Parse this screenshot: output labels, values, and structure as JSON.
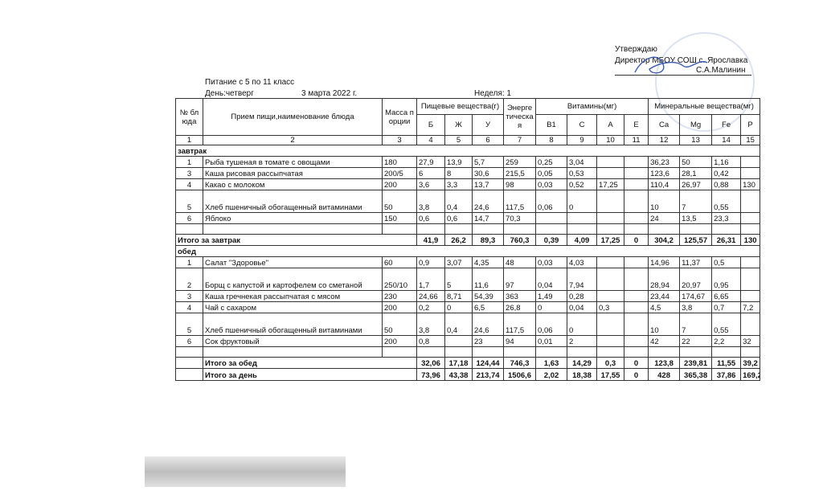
{
  "approval": {
    "label": "Утверждаю",
    "position": "Директор МБОУ СОШ с. Ярославка",
    "name": "С.А.Малинин"
  },
  "header": {
    "title": "Питание с 5 по 11 класс",
    "day": "День:четверг",
    "date": "3 марта 2022 г.",
    "week": "Неделя: 1"
  },
  "table": {
    "head": {
      "number": "№ блюда",
      "dish": "Прием пищи,наименование блюда",
      "mass": "Масса порции",
      "nutrients": {
        "title": "Пищевые вещества(г)",
        "columns": [
          "Б",
          "Ж",
          "У"
        ]
      },
      "energy": "Энергетическая",
      "vitamins": {
        "title": "Витамины(мг)",
        "columns": [
          "B1",
          "C",
          "A",
          "E"
        ]
      },
      "minerals": {
        "title": "Минеральные вещества(мг)",
        "columns": [
          "Ca",
          "Mg",
          "Fe",
          "P"
        ]
      }
    },
    "column_numbers": [
      "1",
      "2",
      "3",
      "4",
      "5",
      "6",
      "7",
      "8",
      "9",
      "10",
      "11",
      "12",
      "13",
      "14",
      "15"
    ],
    "sections": [
      {
        "title": "завтрак",
        "rows": [
          [
            "1",
            "Рыба тушеная в томате с овощами",
            "180",
            "27,9",
            "13,9",
            "5,7",
            "259",
            "0,25",
            "3,04",
            null,
            null,
            "36,23",
            "50",
            "1,16",
            null
          ],
          [
            "3",
            "Каша рисовая рассыпчатая",
            "200/5",
            "6",
            "8",
            "30,6",
            "215,5",
            "0,05",
            "0,53",
            null,
            null,
            "123,6",
            "28,1",
            "0,42",
            null
          ],
          [
            "4",
            "Какао с молоком",
            "200",
            "3,6",
            "3,3",
            "13,7",
            "98",
            "0,03",
            "0,52",
            "17,25",
            null,
            "110,4",
            "26,97",
            "0,88",
            "130"
          ],
          [
            "5",
            "Хлеб пшеничный обогащенный витаминами",
            "50",
            "3,8",
            "0,4",
            "24,6",
            "117,5",
            "0,06",
            "0",
            null,
            null,
            "10",
            "7",
            "0,55",
            null
          ],
          [
            "6",
            "Яблоко",
            "150",
            "0,6",
            "0,6",
            "14,7",
            "70,3",
            null,
            null,
            null,
            null,
            "24",
            "13,5",
            "23,3",
            null
          ]
        ],
        "total": {
          "label": "Итого за завтрак",
          "values": [
            "41,9",
            "26,2",
            "89,3",
            "760,3",
            "0,39",
            "4,09",
            "17,25",
            "0",
            "304,2",
            "125,57",
            "26,31",
            "130"
          ]
        }
      },
      {
        "title": "обед",
        "rows": [
          [
            "1",
            "Салат \"Здоровье\"",
            "60",
            "0,9",
            "3,07",
            "4,35",
            "48",
            "0,03",
            "4,03",
            null,
            null,
            "14,96",
            "11,37",
            "0,5",
            null
          ],
          [
            "2",
            "Борщ с капустой и картофелем со сметаной",
            "250/10",
            "1,7",
            "5",
            "11,6",
            "97",
            "0,04",
            "7,94",
            null,
            null,
            "28,94",
            "20,97",
            "0,95",
            null
          ],
          [
            "3",
            "Каша гречнекая рассыпчатая с мясом",
            "230",
            "24,66",
            "8,71",
            "54,39",
            "363",
            "1,49",
            "0,28",
            null,
            null,
            "23,44",
            "174,67",
            "6,65",
            null
          ],
          [
            "4",
            "Чай с сахаром",
            "200",
            "0,2",
            "0",
            "6,5",
            "26,8",
            "0",
            "0,04",
            "0,3",
            null,
            "4,5",
            "3,8",
            "0,7",
            "7,2"
          ],
          [
            "5",
            "Хлеб пшеничный обогащенный витаминами",
            "50",
            "3,8",
            "0,4",
            "24,6",
            "117,5",
            "0,06",
            "0",
            null,
            null,
            "10",
            "7",
            "0,55",
            null
          ],
          [
            "6",
            "Сок фруктовый",
            "200",
            "0,8",
            null,
            "23",
            "94",
            "0,01",
            "2",
            null,
            null,
            "42",
            "22",
            "2,2",
            "32"
          ]
        ],
        "total": {
          "label": "Итого за обед",
          "values": [
            "32,06",
            "17,18",
            "124,44",
            "746,3",
            "1,63",
            "14,29",
            "0,3",
            "0",
            "123,8",
            "239,81",
            "11,55",
            "39,2"
          ]
        }
      }
    ],
    "day_total": {
      "label": "Итого за день",
      "values": [
        "73,96",
        "43,38",
        "213,74",
        "1506,6",
        "2,02",
        "18,38",
        "17,55",
        "0",
        "428",
        "365,38",
        "37,86",
        "169,2"
      ]
    }
  }
}
